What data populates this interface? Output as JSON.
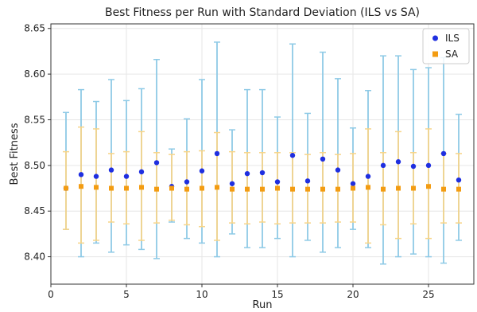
{
  "chart_data": {
    "type": "scatter",
    "title": "Best Fitness per Run with Standard Deviation (ILS vs SA)",
    "xlabel": "Run",
    "ylabel": "Best Fitness",
    "xlim": [
      0,
      28
    ],
    "ylim": [
      8.37,
      8.655
    ],
    "x_ticks": [
      0,
      5,
      10,
      15,
      20,
      25
    ],
    "y_ticks": [
      8.4,
      8.45,
      8.5,
      8.55,
      8.6,
      8.65
    ],
    "y_tick_labels": [
      "8.40",
      "8.45",
      "8.50",
      "8.55",
      "8.60",
      "8.65"
    ],
    "grid": true,
    "legend_position": "top-right",
    "x": [
      1,
      2,
      3,
      4,
      5,
      6,
      7,
      8,
      9,
      10,
      11,
      12,
      13,
      14,
      15,
      16,
      17,
      18,
      19,
      20,
      21,
      22,
      23,
      24,
      25,
      26,
      27
    ],
    "series": [
      {
        "name": "ILS",
        "marker": "circle",
        "color": "#1f2fe0",
        "error_color": "#8ecae6",
        "values": [
          8.475,
          8.49,
          8.488,
          8.495,
          8.488,
          8.493,
          8.503,
          8.477,
          8.482,
          8.494,
          8.513,
          8.48,
          8.491,
          8.492,
          8.482,
          8.511,
          8.483,
          8.507,
          8.495,
          8.48,
          8.488,
          8.5,
          8.504,
          8.499,
          8.5,
          8.513,
          8.484
        ],
        "lower": [
          8.43,
          8.4,
          8.415,
          8.405,
          8.413,
          8.408,
          8.398,
          8.438,
          8.42,
          8.415,
          8.4,
          8.425,
          8.41,
          8.41,
          8.42,
          8.4,
          8.418,
          8.405,
          8.41,
          8.43,
          8.41,
          8.392,
          8.4,
          8.403,
          8.4,
          8.393,
          8.418
        ],
        "upper": [
          8.558,
          8.583,
          8.57,
          8.594,
          8.571,
          8.584,
          8.616,
          8.518,
          8.551,
          8.594,
          8.635,
          8.539,
          8.583,
          8.583,
          8.553,
          8.633,
          8.557,
          8.624,
          8.595,
          8.541,
          8.582,
          8.62,
          8.62,
          8.605,
          8.607,
          8.618,
          8.556
        ]
      },
      {
        "name": "SA",
        "marker": "square",
        "color": "#f39c12",
        "error_color": "#f7d58a",
        "values": [
          8.475,
          8.477,
          8.476,
          8.475,
          8.475,
          8.476,
          8.474,
          8.475,
          8.474,
          8.475,
          8.476,
          8.474,
          8.474,
          8.474,
          8.475,
          8.474,
          8.474,
          8.474,
          8.474,
          8.475,
          8.476,
          8.474,
          8.475,
          8.475,
          8.477,
          8.474,
          8.474
        ],
        "lower": [
          8.43,
          8.415,
          8.418,
          8.438,
          8.436,
          8.418,
          8.437,
          8.44,
          8.435,
          8.433,
          8.418,
          8.437,
          8.436,
          8.438,
          8.436,
          8.437,
          8.437,
          8.437,
          8.438,
          8.438,
          8.415,
          8.435,
          8.42,
          8.436,
          8.42,
          8.437,
          8.437
        ],
        "upper": [
          8.515,
          8.542,
          8.54,
          8.513,
          8.515,
          8.537,
          8.514,
          8.512,
          8.515,
          8.516,
          8.536,
          8.515,
          8.514,
          8.514,
          8.514,
          8.514,
          8.512,
          8.514,
          8.512,
          8.513,
          8.54,
          8.514,
          8.537,
          8.514,
          8.54,
          8.513,
          8.513
        ]
      }
    ]
  }
}
